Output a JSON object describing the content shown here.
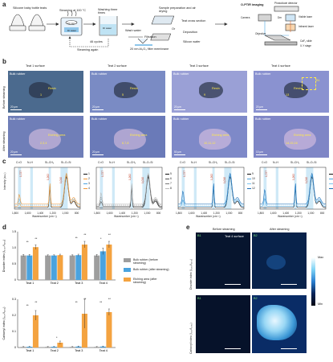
{
  "panels": {
    "a": "a",
    "b": "b",
    "c": "c",
    "d": "d",
    "e": "e"
  },
  "workflow": {
    "bottles_label": "Silicone baby bottle teats",
    "steam_label": "Steaming at 100 °C",
    "steam_time": "10 min",
    "steam_dish_label": "DI water",
    "cycles": "46 cycles",
    "steam_again": "Steaming again",
    "wash_label": "Washing three times",
    "wash_water": "DI water",
    "wash_water2": "Wash water",
    "filtration": "Filtration",
    "filter_label": "20 nm Al₂O₃ filter membrane",
    "prep_label": "Sample preparation and air drying",
    "teat_cross": "Teat cross section",
    "or": "Or",
    "deposition": "Deposition",
    "silicon_wafer": "Silicon wafer",
    "optir_label": "O-PTIR imaging",
    "photodiode": "Photodiode detector",
    "camera": "Camera",
    "dm": "Dm",
    "visible_laser": "Visible laser",
    "infrared_laser": "Infrared laser",
    "objective": "Objective",
    "caf2": "CaF₂ slide",
    "xy_stage": "X-Y stage"
  },
  "micro": {
    "col_titles": [
      "Teat 1 surface",
      "Teat 2 surface",
      "Teat 3 surface",
      "Teat 4 surface"
    ],
    "row_before": "Before steaming",
    "row_after": "After steaming",
    "bulk_rubber": "Bulk rubber",
    "resin": "Resin",
    "etching": "Etching area",
    "scale": [
      "20 μm",
      "20 μm",
      "20 μm",
      "20 μm",
      "20 μm",
      "50 μm",
      "20 μm",
      "10 μm"
    ],
    "points_before": [
      "1",
      "5",
      "9",
      "13"
    ],
    "points_after": [
      "2,3,4",
      "6,7,8",
      "10,11,12",
      "14,15,16"
    ],
    "inset_label": "B1"
  },
  "spectra": {
    "ylabel": "Intensity (a.u.)",
    "xlabel": "Wavenumber (cm⁻¹)",
    "band_labels": [
      "C=O",
      "N–H",
      "Si–CH₃",
      "Si–O–Si"
    ],
    "ticks": [
      "1,800",
      "1,600",
      "1,400",
      "1,200",
      "1,000",
      "800"
    ],
    "peak_marks": [
      "1,727",
      "1,262",
      "1,010"
    ],
    "legends": [
      [
        "1",
        "2",
        "3",
        "4"
      ],
      [
        "5",
        "6",
        "7",
        "8"
      ],
      [
        "9",
        "10",
        "11",
        "12"
      ],
      [
        "13",
        "14",
        "15",
        "16"
      ]
    ]
  },
  "chart_data": [
    {
      "type": "bar",
      "title": "",
      "ylabel": "Disorder index (I₁₀₁₀/I₁₂₆₂)",
      "categories": [
        "Teat 1",
        "Teat 2",
        "Teat 3",
        "Teat 4"
      ],
      "ylim": [
        0,
        1.5
      ],
      "yticks": [
        "0",
        "0.5",
        "1.0",
        "1.5"
      ],
      "series": [
        {
          "name": "Bulk rubber (before steaming)",
          "values": [
            0.76,
            0.76,
            0.76,
            0.76
          ],
          "errors": [
            0.03,
            0.02,
            0.02,
            0.03
          ]
        },
        {
          "name": "Bulk rubber (after steaming)",
          "values": [
            0.76,
            0.76,
            0.77,
            0.89
          ],
          "errors": [
            0.03,
            0.02,
            0.03,
            0.1
          ]
        },
        {
          "name": "Etching area (after steaming)",
          "values": [
            1.02,
            0.77,
            1.1,
            1.1
          ],
          "errors": [
            0.07,
            0.03,
            0.1,
            0.1
          ]
        }
      ],
      "significance": [
        "**",
        "**",
        "**",
        "**",
        "**",
        "*"
      ]
    },
    {
      "type": "bar",
      "title": "",
      "ylabel": "Carbonyl index (I₁₇₂₇/I₁₂₆₂)",
      "categories": [
        "Teat 1",
        "Teat 2",
        "Teat 3",
        "Teat 4"
      ],
      "ylim": [
        0,
        0.3
      ],
      "yticks": [
        "0",
        "0.1",
        "0.2",
        "0.3"
      ],
      "series": [
        {
          "name": "Bulk rubber (before steaming)",
          "values": [
            0.004,
            0.004,
            0.004,
            0.004
          ],
          "errors": [
            0.002,
            0.002,
            0.002,
            0.002
          ]
        },
        {
          "name": "Bulk rubber (after steaming)",
          "values": [
            0.005,
            0.005,
            0.006,
            0.006
          ],
          "errors": [
            0.002,
            0.002,
            0.003,
            0.003
          ]
        },
        {
          "name": "Etching area (after steaming)",
          "values": [
            0.2,
            0.03,
            0.21,
            0.22
          ],
          "errors": [
            0.03,
            0.01,
            0.09,
            0.02
          ]
        }
      ],
      "significance": [
        "**",
        "**",
        "*",
        "**",
        "**",
        "**",
        "**"
      ]
    }
  ],
  "maps": {
    "col_before": "Before steaming",
    "col_after": "After steaming",
    "teat_label": "Teat 4 surface",
    "row1": "Disorder index (I₁₀₁₀/I₁₂₆₂)",
    "row2": "Carbonyl index (I₁₇₂₇/I₁₂₆₂)",
    "tags": [
      "B1",
      "B2",
      "B1",
      "B2"
    ],
    "cbar_max": "Max",
    "cbar_min": "Min"
  },
  "colors": {
    "before": "#9e9e9e",
    "after": "#4aa3df",
    "etch": "#f4a340",
    "band": "#bfe3f4"
  }
}
